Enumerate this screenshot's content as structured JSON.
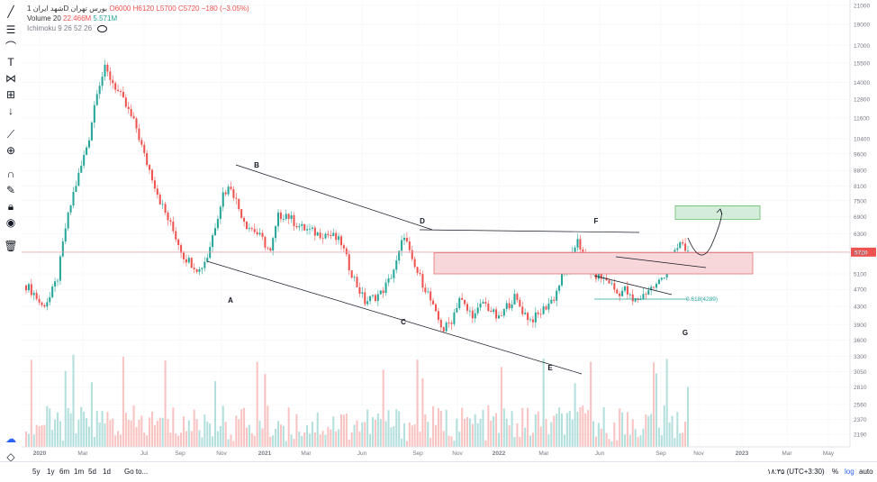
{
  "header": {
    "symbol": "شهد ایران",
    "interval": "1D",
    "exchange": "بورس تهران",
    "ohlc": {
      "O": "O6000",
      "H": "H6120",
      "L": "L5700",
      "C": "C5720",
      "change": "−180 (−3.05%)"
    },
    "volume_label": "Volume 20",
    "volume_values": [
      "22.466M",
      "5.571M"
    ],
    "ichimoku_label": "Ichimoku 9 26 52 26"
  },
  "toolbar": {
    "icons": [
      "cursor-line-icon",
      "horizontal-lines-icon",
      "brush-icon",
      "text-icon",
      "pattern-icon",
      "measure-icon",
      "arrow-down-icon",
      "ruler-icon",
      "zoom-icon",
      "magnet-icon",
      "lock-draw-icon",
      "lock-icon",
      "eye-icon",
      "trash-icon"
    ]
  },
  "colors": {
    "up": "#26a69a",
    "down": "#ef5350",
    "price_line": "#f4a0a8",
    "zone_red": "#f8d7da",
    "zone_green": "#d4edda"
  },
  "bottom": {
    "ranges": [
      "5y",
      "1y",
      "6m",
      "1m",
      "5d",
      "1d"
    ],
    "goto": "Go to...",
    "time": "۱۸:۳۵ (UTC+3:30)",
    "pct": "%",
    "log": "log",
    "auto": "auto"
  },
  "chart_data": {
    "type": "candlestick",
    "price_axis": {
      "scale": "log",
      "ticks": [
        2190,
        2370,
        2560,
        2810,
        3050,
        3300,
        3600,
        3900,
        4300,
        4700,
        5100,
        5700,
        6300,
        6900,
        7500,
        8100,
        8800,
        9600,
        10400,
        11600,
        12800,
        14000,
        15500,
        17000,
        19000,
        21000
      ],
      "current_price": 5720
    },
    "time_axis": {
      "labels": [
        "2020",
        "Mar",
        "Jul",
        "Sep",
        "Nov",
        "2021",
        "Mar",
        "Jun",
        "Sep",
        "Nov",
        "2022",
        "Mar",
        "Jun",
        "Sep",
        "Nov",
        "2023",
        "Mar",
        "May"
      ]
    },
    "series": [
      {
        "values": [
          [
            0,
            4800
          ],
          [
            3,
            4600
          ],
          [
            6,
            4300
          ],
          [
            9,
            4500
          ],
          [
            12,
            5000
          ],
          [
            15,
            6500
          ],
          [
            18,
            7800
          ],
          [
            21,
            9000
          ],
          [
            24,
            10500
          ],
          [
            27,
            13500
          ],
          [
            30,
            15000
          ],
          [
            33,
            14000
          ],
          [
            36,
            13000
          ],
          [
            39,
            12000
          ],
          [
            42,
            11000
          ],
          [
            45,
            9500
          ],
          [
            48,
            8500
          ],
          [
            51,
            7500
          ],
          [
            54,
            6800
          ],
          [
            57,
            6200
          ],
          [
            60,
            5600
          ],
          [
            63,
            5400
          ],
          [
            66,
            5200
          ],
          [
            69,
            5600
          ],
          [
            72,
            6600
          ],
          [
            75,
            7800
          ],
          [
            78,
            8100
          ],
          [
            81,
            7200
          ],
          [
            84,
            6600
          ],
          [
            87,
            6400
          ],
          [
            90,
            6100
          ],
          [
            93,
            5700
          ],
          [
            96,
            6900
          ],
          [
            99,
            7000
          ],
          [
            102,
            6700
          ],
          [
            105,
            6500
          ],
          [
            108,
            6400
          ],
          [
            111,
            6300
          ],
          [
            114,
            6300
          ],
          [
            117,
            6200
          ],
          [
            120,
            6000
          ],
          [
            123,
            5300
          ],
          [
            126,
            4800
          ],
          [
            129,
            4400
          ],
          [
            132,
            4500
          ],
          [
            135,
            4600
          ],
          [
            138,
            4900
          ],
          [
            141,
            5400
          ],
          [
            144,
            6300
          ],
          [
            147,
            5400
          ],
          [
            150,
            5000
          ],
          [
            153,
            4600
          ],
          [
            156,
            4100
          ],
          [
            159,
            3800
          ],
          [
            162,
            4000
          ],
          [
            165,
            4500
          ],
          [
            168,
            4200
          ],
          [
            171,
            4100
          ],
          [
            174,
            4400
          ],
          [
            177,
            4200
          ],
          [
            180,
            4000
          ],
          [
            183,
            4300
          ],
          [
            186,
            4500
          ],
          [
            189,
            4200
          ],
          [
            192,
            4000
          ],
          [
            195,
            4100
          ],
          [
            198,
            4300
          ],
          [
            201,
            4500
          ],
          [
            204,
            5000
          ],
          [
            207,
            5300
          ],
          [
            210,
            6200
          ],
          [
            213,
            5300
          ],
          [
            216,
            5100
          ],
          [
            219,
            5000
          ],
          [
            222,
            4900
          ],
          [
            225,
            4600
          ],
          [
            228,
            4700
          ],
          [
            231,
            4400
          ],
          [
            234,
            4500
          ],
          [
            237,
            4700
          ],
          [
            240,
            4800
          ],
          [
            243,
            5100
          ],
          [
            246,
            5500
          ],
          [
            249,
            6000
          ],
          [
            252,
            5720
          ]
        ]
      }
    ],
    "volume_series": {
      "name": "Volume 20"
    },
    "annotations": {
      "wave_labels": [
        "A",
        "B",
        "C",
        "D",
        "E",
        "F",
        "G"
      ],
      "fib_label": "0.618(4289)",
      "zones": [
        "resistance-zone",
        "target-zone"
      ]
    }
  }
}
